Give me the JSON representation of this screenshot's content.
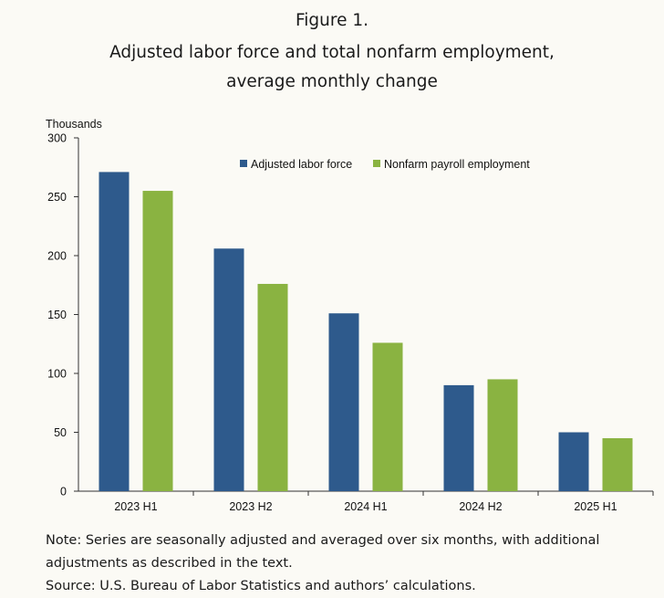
{
  "figure_number": "Figure 1.",
  "title_line1": "Adjusted labor force and total nonfarm employment,",
  "title_line2": "average monthly change",
  "note_line1": "Note: Series are seasonally adjusted and averaged over six months, with additional",
  "note_line2": "adjustments as described in the text.",
  "source": "Source: U.S. Bureau of Labor Statistics and authors’ calculations.",
  "colors": {
    "labor_force": "#2e5a8c",
    "payroll": "#8ab341",
    "axis": "#333333"
  },
  "chart_data": {
    "type": "bar",
    "title": "Adjusted labor force and total nonfarm employment, average monthly change",
    "ylabel": "Thousands",
    "xlabel": "",
    "ylim": [
      0,
      300
    ],
    "yticks": [
      0,
      50,
      100,
      150,
      200,
      250,
      300
    ],
    "categories": [
      "2023 H1",
      "2023 H2",
      "2024 H1",
      "2024 H2",
      "2025 H1"
    ],
    "legend_position": "top-right",
    "series": [
      {
        "name": "Adjusted labor force",
        "values": [
          271,
          206,
          151,
          90,
          50
        ]
      },
      {
        "name": "Nonfarm payroll employment",
        "values": [
          255,
          176,
          126,
          95,
          45
        ]
      }
    ]
  }
}
